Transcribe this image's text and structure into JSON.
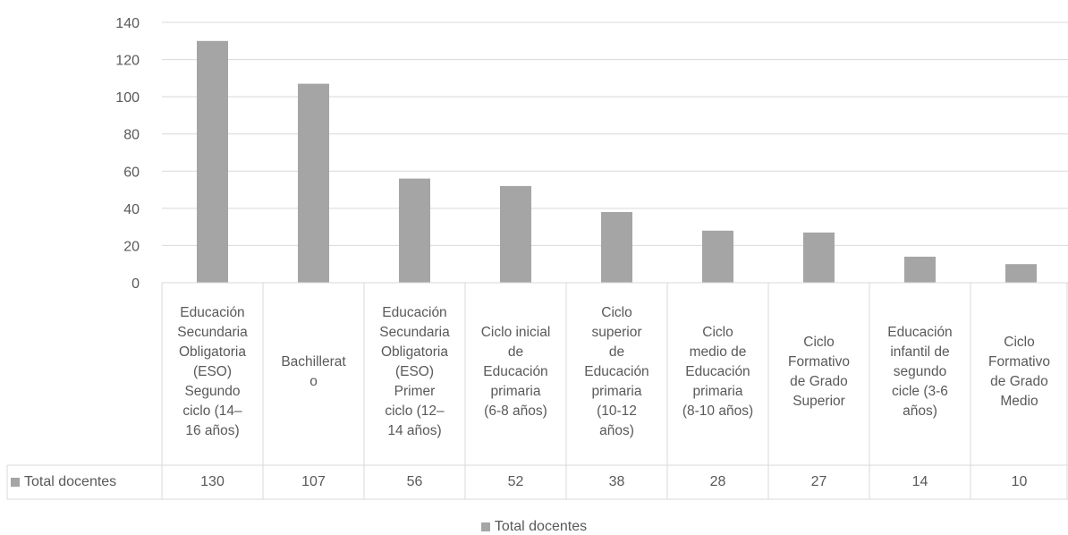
{
  "chart_data": {
    "type": "bar",
    "categories": [
      "Educación\nSecundaria\nObligatoria\n(ESO)\nSegundo\nciclo (14–\n16 años)",
      "Bachillerat\no",
      "Educación\nSecundaria\nObligatoria\n(ESO)\nPrimer\nciclo (12–\n14 años)",
      "Ciclo inicial\nde\nEducación\nprimaria\n(6-8 años)",
      "Ciclo\nsuperior\nde\nEducación\nprimaria\n(10-12\naños)",
      "Ciclo\nmedio de\nEducación\nprimaria\n(8-10 años)",
      "Ciclo\nFormativo\nde Grado\nSuperior",
      "Educación\ninfantil de\nsegundo\ncicle (3-6\naños)",
      "Ciclo\nFormativo\nde Grado\nMedio"
    ],
    "series": [
      {
        "name": "Total docentes",
        "values": [
          130,
          107,
          56,
          52,
          38,
          28,
          27,
          14,
          10
        ]
      }
    ],
    "value_labels": [
      "130",
      "107",
      "56",
      "52",
      "38",
      "28",
      "27",
      "14",
      "10"
    ],
    "y_ticks": [
      "0",
      "20",
      "40",
      "60",
      "80",
      "100",
      "120",
      "140"
    ],
    "ylim": [
      0,
      140
    ],
    "grid": true,
    "legend": "bottom",
    "data_table": true,
    "colors": {
      "bar": "#a5a5a5",
      "grid": "#d9d9d9",
      "text": "#595959"
    }
  }
}
